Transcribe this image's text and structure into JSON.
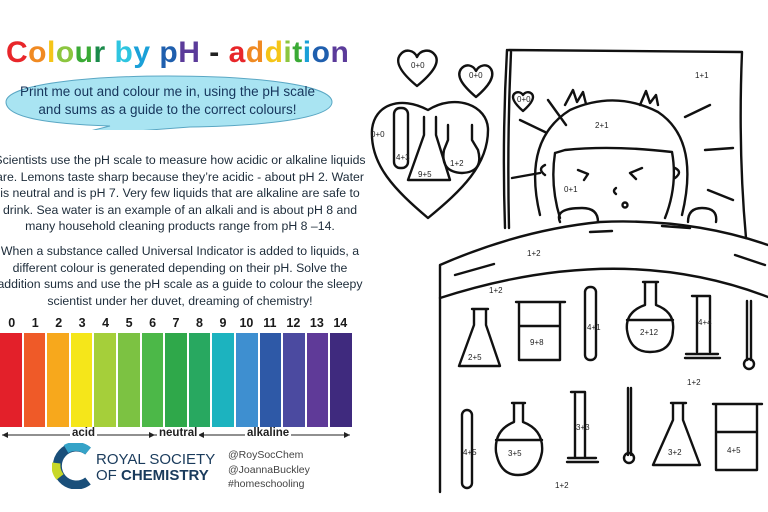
{
  "title": {
    "letters": [
      {
        "ch": "C",
        "color": "#e8262a"
      },
      {
        "ch": "o",
        "color": "#f08a22"
      },
      {
        "ch": "l",
        "color": "#f5c518"
      },
      {
        "ch": "o",
        "color": "#8cc63f"
      },
      {
        "ch": "u",
        "color": "#3aaa35"
      },
      {
        "ch": "r",
        "color": "#1a8a4a"
      },
      {
        "ch": " ",
        "color": "#000"
      },
      {
        "ch": "b",
        "color": "#2ec5e0"
      },
      {
        "ch": "y",
        "color": "#1aa0d8"
      },
      {
        "ch": " ",
        "color": "#000"
      },
      {
        "ch": "p",
        "color": "#1f5fae"
      },
      {
        "ch": "H",
        "color": "#5b3b9a"
      },
      {
        "ch": " ",
        "color": "#000"
      },
      {
        "ch": "-",
        "color": "#222"
      },
      {
        "ch": " ",
        "color": "#000"
      },
      {
        "ch": "a",
        "color": "#e8262a"
      },
      {
        "ch": "d",
        "color": "#f08a22"
      },
      {
        "ch": "d",
        "color": "#f5c518"
      },
      {
        "ch": "i",
        "color": "#8cc63f"
      },
      {
        "ch": "t",
        "color": "#3aaa35"
      },
      {
        "ch": "i",
        "color": "#1aa0d8"
      },
      {
        "ch": "o",
        "color": "#1f5fae"
      },
      {
        "ch": "n",
        "color": "#5b3b9a"
      }
    ]
  },
  "bubble": {
    "line1": "Print me out and colour me in, using the pH scale",
    "line2": "and sums as a guide to the correct colours!",
    "color": "#a9e4f2"
  },
  "paragraph1": "Scientists use the pH scale to measure how acidic or alkaline liquids are. Lemons taste sharp because they’re acidic - about pH 2. Water is neutral and is pH 7. Very few liquids that are alkaline are safe to drink. Sea water is an example of an alkali and is about pH 8 and many household cleaning products range from pH 8 –14.",
  "paragraph2": "When a substance called Universal Indicator is added to liquids, a different colour is generated depending on their pH. Solve the addition sums and use the pH scale as a guide to colour the sleepy scientist under her duvet, dreaming of chemistry!",
  "ph_scale": {
    "numbers": [
      "0",
      "1",
      "2",
      "3",
      "4",
      "5",
      "6",
      "7",
      "8",
      "9",
      "10",
      "11",
      "12",
      "13",
      "14"
    ],
    "colors": [
      "#e3202a",
      "#ef5a28",
      "#f7a81c",
      "#f5e61a",
      "#a5cf3a",
      "#7cc242",
      "#4cb848",
      "#2fa84a",
      "#28a860",
      "#1cb3bf",
      "#3e8fd0",
      "#2e59a7",
      "#4b4aa0",
      "#5f3a98",
      "#3f2a7e"
    ],
    "labels": {
      "acid": "acid",
      "neutral": "neutral",
      "alkaline": "alkaline"
    }
  },
  "logo": {
    "line1": "ROYAL SOCIETY",
    "line2_prefix": "OF ",
    "line2_bold": "CHEMISTRY"
  },
  "social": [
    "@RoySocChem",
    "@JoannaBuckley",
    "#homeschooling"
  ],
  "sums": {
    "heart1": "0+0",
    "heart2": "0+0",
    "heart3": "0+0",
    "big_heart": "0+0",
    "dream_tube": "4+3",
    "dream_flask": "9+5",
    "dream_small_flask": "1+2",
    "pillow": "1+1",
    "hair": "2+1",
    "face": "0+1",
    "duvet_top": "1+2",
    "duvet_left": "1+2",
    "row1_flask": "2+5",
    "row1_beaker": "9+8",
    "row1_tube": "4+1",
    "row1_round": "2+12",
    "row1_cylinder": "4+4",
    "middle": "1+2",
    "row2_tube": "4+5",
    "row2_round": "3+5",
    "row2_cylinder": "3+3",
    "row2_flask": "3+2",
    "row2_beaker": "4+5",
    "bottom": "1+2"
  }
}
